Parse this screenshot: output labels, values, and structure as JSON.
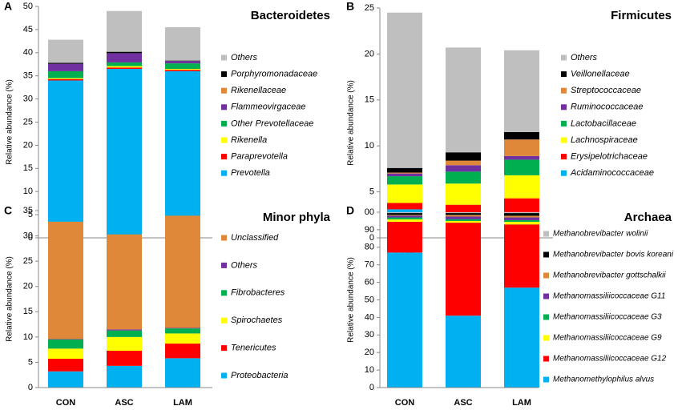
{
  "chart_data": [
    {
      "type": "bar",
      "stacked": true,
      "panel": "A",
      "title": "Bacteroidetes",
      "ylabel": "Relative abundance (%)",
      "categories": [
        "CON",
        "ASC",
        "LAM"
      ],
      "ylim": [
        0,
        50
      ],
      "yticks": [
        0,
        5,
        10,
        15,
        20,
        25,
        30,
        35,
        40,
        45,
        50
      ],
      "series": [
        {
          "name": "Prevotella",
          "color": "#00b0f0",
          "values": [
            34,
            36.5,
            36
          ]
        },
        {
          "name": "Paraprevotella",
          "color": "#ff0000",
          "values": [
            0.3,
            0.3,
            0.3
          ]
        },
        {
          "name": "Rikenella",
          "color": "#ffff00",
          "values": [
            0.2,
            0.3,
            0.2
          ]
        },
        {
          "name": "Other Prevotellaceae",
          "color": "#00b050",
          "values": [
            1.5,
            0.8,
            1.2
          ]
        },
        {
          "name": "Flammeovirgaceae",
          "color": "#7030a0",
          "values": [
            1.6,
            2,
            0.5
          ]
        },
        {
          "name": "Rikenellaceae",
          "color": "#e0883a",
          "values": [
            0,
            0,
            0
          ]
        },
        {
          "name": "Porphyromonadaceae",
          "color": "#000000",
          "values": [
            0.2,
            0.3,
            0.1
          ]
        },
        {
          "name": "Others",
          "color": "#bfbfbf",
          "values": [
            5,
            8.8,
            7.2
          ]
        }
      ]
    },
    {
      "type": "bar",
      "stacked": true,
      "panel": "B",
      "title": "Firmicutes",
      "ylabel": "Relative abundance (%)",
      "categories": [
        "CON",
        "ASC",
        "LAM"
      ],
      "ylim": [
        0,
        25
      ],
      "yticks": [
        0,
        5,
        10,
        15,
        20,
        25
      ],
      "series": [
        {
          "name": "Acidaminococcaceae",
          "color": "#00b0f0",
          "values": [
            3.1,
            2.7,
            2.8
          ]
        },
        {
          "name": "Erysipelotrichaceae",
          "color": "#ff0000",
          "values": [
            0.7,
            0.9,
            1.5
          ]
        },
        {
          "name": "Lachnospiraceae",
          "color": "#ffff00",
          "values": [
            2,
            2.3,
            2.5
          ]
        },
        {
          "name": "Lactobacillaceae",
          "color": "#00b050",
          "values": [
            0.9,
            1.3,
            1.7
          ]
        },
        {
          "name": "Ruminococcaceae",
          "color": "#7030a0",
          "values": [
            0.3,
            0.7,
            0.4
          ]
        },
        {
          "name": "Streptococcaceae",
          "color": "#e0883a",
          "values": [
            0.1,
            0.5,
            1.8
          ]
        },
        {
          "name": "Veillonellaceae",
          "color": "#000000",
          "values": [
            0.5,
            0.9,
            0.8
          ]
        },
        {
          "name": "Others",
          "color": "#bfbfbf",
          "values": [
            16.9,
            11.4,
            8.9
          ]
        }
      ]
    },
    {
      "type": "bar",
      "stacked": true,
      "panel": "C",
      "title": "Minor phyla",
      "ylabel": "Relative abundance (%)",
      "categories": [
        "CON",
        "ASC",
        "LAM"
      ],
      "ylim": [
        0,
        35
      ],
      "yticks": [
        0,
        5,
        10,
        15,
        20,
        25,
        30,
        35
      ],
      "series": [
        {
          "name": "Proteobacteria",
          "color": "#00b0f0",
          "values": [
            3.2,
            4.3,
            5.8
          ]
        },
        {
          "name": "Tenericutes",
          "color": "#ff0000",
          "values": [
            2.5,
            3,
            2.9
          ]
        },
        {
          "name": "Spirochaetes",
          "color": "#ffff00",
          "values": [
            2,
            2.7,
            2
          ]
        },
        {
          "name": "Fibrobacteres",
          "color": "#00b050",
          "values": [
            1.8,
            1.3,
            1
          ]
        },
        {
          "name": "Others",
          "color": "#7030a0",
          "values": [
            0.1,
            0.2,
            0.1
          ]
        },
        {
          "name": "Unclassified",
          "color": "#e0883a",
          "values": [
            23.2,
            18.8,
            22.2
          ]
        }
      ]
    },
    {
      "type": "bar",
      "stacked": true,
      "panel": "D",
      "title": "Archaea",
      "ylabel": "Relative abundance (%)",
      "categories": [
        "CON",
        "ASC",
        "LAM"
      ],
      "ylim": [
        0,
        100
      ],
      "yticks": [
        0,
        10,
        20,
        30,
        40,
        50,
        60,
        70,
        80,
        90,
        {
          "value": 100,
          "label": "00"
        }
      ],
      "series": [
        {
          "name": "Methanomethylophilus alvus",
          "color": "#00b0f0",
          "values": [
            77,
            41,
            57
          ]
        },
        {
          "name": "Methanomassiliicoccaceae G12",
          "color": "#ff0000",
          "values": [
            17.5,
            53,
            36
          ]
        },
        {
          "name": "Methanomassiliicoccaceae G9",
          "color": "#ffff00",
          "values": [
            1.5,
            1,
            1.5
          ]
        },
        {
          "name": "Methanomassiliicoccaceae G3",
          "color": "#00b050",
          "values": [
            1,
            1,
            1
          ]
        },
        {
          "name": "Methanomassiliicoccaceae G11",
          "color": "#7030a0",
          "values": [
            1,
            1.5,
            1.5
          ]
        },
        {
          "name": "Methanobrevibacter gottschalkii",
          "color": "#e0883a",
          "values": [
            0.5,
            1,
            1
          ]
        },
        {
          "name": "Methanobrevibacter bovis koreani",
          "color": "#000000",
          "values": [
            1,
            1,
            1.5
          ]
        },
        {
          "name": "Methanobrevibacter wolinii",
          "color": "#bfbfbf",
          "values": [
            0.5,
            0.5,
            0.5
          ]
        }
      ]
    }
  ]
}
